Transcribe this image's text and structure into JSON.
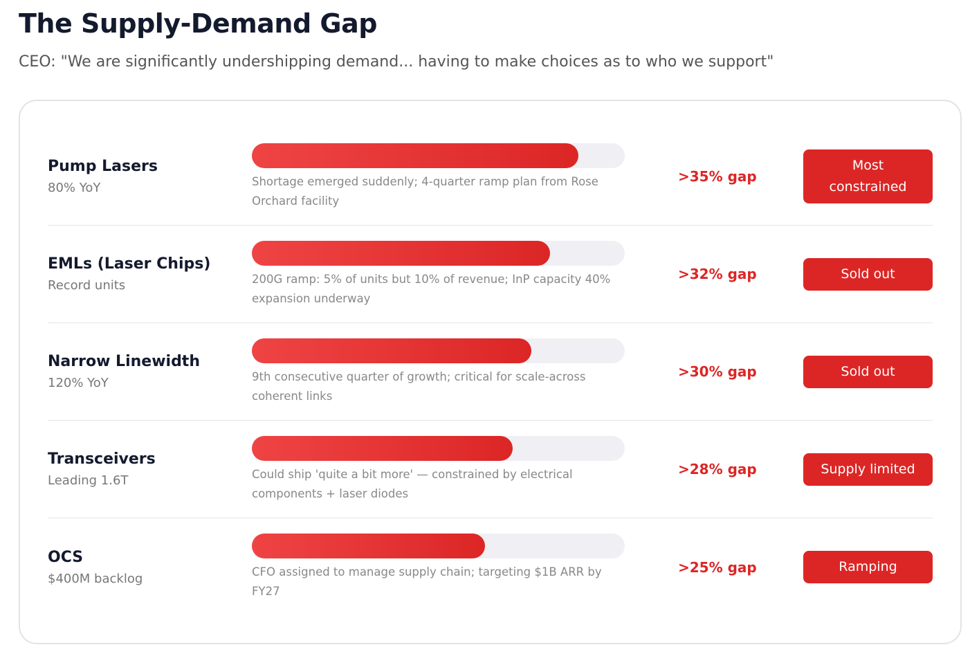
{
  "header": {
    "title": "The Supply-Demand Gap",
    "subtitle": "CEO: \"We are significantly undershipping demand... having to make choices as to who we support\""
  },
  "rows": [
    {
      "name": "Pump Lasers",
      "detail": "80% YoY",
      "fill_percent": 87.5,
      "description": "Shortage emerged suddenly; 4-quarter ramp plan from Rose Orchard facility",
      "gap": ">35% gap",
      "status": "Most constrained"
    },
    {
      "name": "EMLs (Laser Chips)",
      "detail": "Record units",
      "fill_percent": 80,
      "description": "200G ramp: 5% of units but 10% of revenue; InP capacity 40% expansion underway",
      "gap": ">32% gap",
      "status": "Sold out"
    },
    {
      "name": "Narrow Linewidth",
      "detail": "120% YoY",
      "fill_percent": 75,
      "description": "9th consecutive quarter of growth; critical for scale-across coherent links",
      "gap": ">30% gap",
      "status": "Sold out"
    },
    {
      "name": "Transceivers",
      "detail": "Leading 1.6T",
      "fill_percent": 70,
      "description": "Could ship 'quite a bit more' — constrained by electrical components + laser diodes",
      "gap": ">28% gap",
      "status": "Supply limited"
    },
    {
      "name": "OCS",
      "detail": "$400M backlog",
      "fill_percent": 62.5,
      "description": "CFO assigned to manage supply chain; targeting $1B ARR by FY27",
      "gap": ">25% gap",
      "status": "Ramping"
    }
  ]
}
